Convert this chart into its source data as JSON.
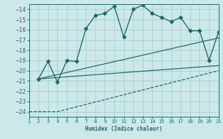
{
  "xlabel": "Humidex (Indice chaleur)",
  "bg_color": "#cce8e8",
  "grid_color": "#aacccc",
  "line_color": "#1a6b6b",
  "xlim": [
    1,
    21
  ],
  "ylim": [
    -24.5,
    -13.5
  ],
  "xticks": [
    1,
    2,
    3,
    4,
    5,
    6,
    7,
    8,
    9,
    10,
    11,
    12,
    13,
    14,
    15,
    16,
    17,
    18,
    19,
    20,
    21
  ],
  "yticks": [
    -14,
    -15,
    -16,
    -17,
    -18,
    -19,
    -20,
    -21,
    -22,
    -23,
    -24
  ],
  "series_main": {
    "x": [
      2,
      3,
      4,
      5,
      6,
      7,
      8,
      9,
      10,
      11,
      12,
      13,
      14,
      15,
      16,
      17,
      18,
      19,
      20,
      21
    ],
    "y": [
      -20.8,
      -19.1,
      -21.1,
      -19.0,
      -19.1,
      -15.9,
      -14.6,
      -14.4,
      -13.7,
      -16.7,
      -14.0,
      -13.6,
      -14.4,
      -14.8,
      -15.2,
      -14.8,
      -16.1,
      -16.1,
      -19.0,
      -16.2
    ],
    "marker": "D",
    "markersize": 2.5,
    "linewidth": 1.0
  },
  "series_lines": [
    {
      "x": [
        2,
        21
      ],
      "y": [
        -20.8,
        -16.8
      ],
      "linewidth": 0.9,
      "linestyle": "-"
    },
    {
      "x": [
        2,
        21
      ],
      "y": [
        -20.8,
        -19.5
      ],
      "linewidth": 0.9,
      "linestyle": "-"
    },
    {
      "x": [
        1,
        4,
        21
      ],
      "y": [
        -24.0,
        -24.0,
        -20.0
      ],
      "linewidth": 0.9,
      "linestyle": "--"
    }
  ]
}
